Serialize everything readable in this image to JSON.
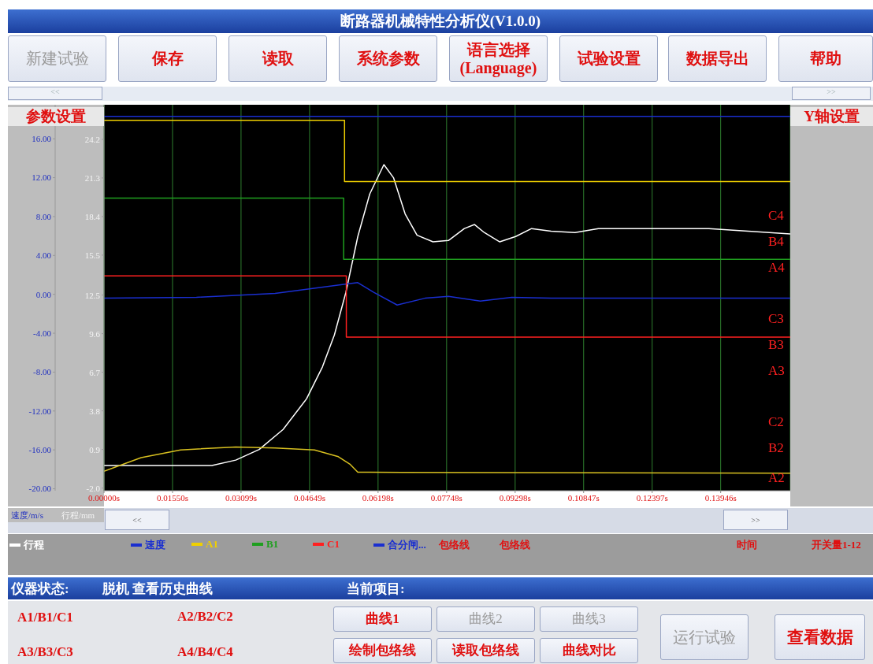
{
  "chart_data": {
    "type": "line",
    "title": "断路器机械特性分析仪(V1.0.0)",
    "ylabel": "速度/m/s",
    "y2label": "行程/mm",
    "xlim": [
      0,
      0.1552
    ],
    "xticks": [
      {
        "value": 0,
        "label": "0.00000s"
      },
      {
        "value": 0.0155,
        "label": "0.01550s"
      },
      {
        "value": 0.03099,
        "label": "0.03099s"
      },
      {
        "value": 0.04649,
        "label": "0.04649s"
      },
      {
        "value": 0.06198,
        "label": "0.06198s"
      },
      {
        "value": 0.07748,
        "label": "0.07748s"
      },
      {
        "value": 0.09298,
        "label": "0.09298s"
      },
      {
        "value": 0.10847,
        "label": "0.10847s"
      },
      {
        "value": 0.12397,
        "label": "0.12397s"
      },
      {
        "value": 0.13946,
        "label": "0.13946s"
      }
    ],
    "ylim": [
      -20.2,
      19.5
    ],
    "yticks": [
      {
        "value": 16,
        "label": "16.00"
      },
      {
        "value": 12,
        "label": "12.00"
      },
      {
        "value": 8,
        "label": "8.00"
      },
      {
        "value": 4,
        "label": "4.00"
      },
      {
        "value": 0,
        "label": "0.00"
      },
      {
        "value": -4,
        "label": "-4.00"
      },
      {
        "value": -8,
        "label": "-8.00"
      },
      {
        "value": -12,
        "label": "-12.00"
      },
      {
        "value": -16,
        "label": "-16.00"
      },
      {
        "value": -20,
        "label": "-20.00"
      }
    ],
    "y2lim": [
      -2.2,
      26.8
    ],
    "y2ticks": [
      24.2,
      21.3,
      18.4,
      15.5,
      12.5,
      9.6,
      6.7,
      3.8,
      0.9,
      {
        "value": -2,
        "label": "-2.0"
      }
    ],
    "grid": "x",
    "legend": "bottom",
    "marker": "none",
    "series": [
      {
        "name": "行程",
        "color": "#ffffff",
        "axis": "y2",
        "x": [
          0,
          0.0244,
          0.0298,
          0.0351,
          0.0405,
          0.0458,
          0.0494,
          0.0521,
          0.0547,
          0.0574,
          0.0601,
          0.0633,
          0.0655,
          0.0681,
          0.0708,
          0.0744,
          0.0779,
          0.0815,
          0.0838,
          0.086,
          0.0895,
          0.0931,
          0.0967,
          0.1011,
          0.1065,
          0.1118,
          0.119,
          0.1279,
          0.1368,
          0.1457,
          0.1552
        ],
        "values": [
          -0.3,
          -0.3,
          0.1,
          0.9,
          2.4,
          4.7,
          7.1,
          9.5,
          12.7,
          16.9,
          20.1,
          22.3,
          21.3,
          18.6,
          17.0,
          16.5,
          16.6,
          17.5,
          17.8,
          17.2,
          16.5,
          16.9,
          17.5,
          17.3,
          17.2,
          17.5,
          17.5,
          17.5,
          17.5,
          17.3,
          17.1
        ]
      },
      {
        "color": "#d8c020",
        "x": [
          0,
          0.0084,
          0.0173,
          0.0298,
          0.0387,
          0.0476,
          0.053,
          0.0557,
          0.0574,
          0.0601,
          0.1552
        ],
        "values": [
          -18.2,
          -16.8,
          -16.0,
          -15.7,
          -15.8,
          -16.0,
          -16.7,
          -17.5,
          -18.3,
          -18.3,
          -18.4
        ]
      },
      {
        "name": "速度",
        "color": "#1a2fd0",
        "x": [
          0,
          0.0209,
          0.0387,
          0.0539,
          0.0574,
          0.061,
          0.0663,
          0.0726,
          0.0779,
          0.0851,
          0.0922,
          0.1011,
          0.1552
        ],
        "values": [
          -0.4,
          -0.3,
          0.1,
          1.0,
          1.2,
          0.2,
          -1.1,
          -0.4,
          -0.2,
          -0.7,
          -0.3,
          -0.4,
          -0.4
        ]
      },
      {
        "name": "A1",
        "type": "step",
        "color": "#f0d000",
        "x": [
          0,
          0.0544,
          0.1552
        ],
        "values": [
          17.9,
          11.6,
          11.6
        ]
      },
      {
        "name": "B1",
        "type": "step",
        "color": "#1f9f1f",
        "x": [
          0,
          0.0542,
          0.1552
        ],
        "values": [
          9.9,
          3.6,
          3.6
        ]
      },
      {
        "name": "C1",
        "type": "step",
        "color": "#ff2020",
        "x": [
          0,
          0.0548,
          0.1552
        ],
        "values": [
          1.9,
          -4.4,
          -4.4
        ]
      },
      {
        "name": "合分闸...",
        "color": "#1a2fd0",
        "x": [
          0,
          0.1552
        ],
        "values": [
          18.3,
          18.3
        ]
      }
    ],
    "annotations": [
      "新建试验",
      "保存",
      "读取",
      "系统参数",
      "语言选择(Language)",
      "试验设置",
      "数据导出",
      "帮助",
      "参数设置",
      "Y轴设置",
      "C4",
      "B4",
      "A4",
      "C3",
      "B3",
      "A3",
      "C2",
      "B2",
      "A2",
      "包络线",
      "包络线",
      "时间",
      "开关量1-12",
      "仪器状态:",
      "脱机 查看历史曲线",
      "当前项目:",
      "A1/B1/C1",
      "A2/B2/C2",
      "A3/B3/C3",
      "A4/B4/C4",
      "曲线1",
      "曲线2",
      "曲线3",
      "绘制包络线",
      "读取包络线",
      "曲线对比",
      "运行试验",
      "查看数据",
      "<<",
      ">>",
      "<<",
      ">>"
    ]
  }
}
